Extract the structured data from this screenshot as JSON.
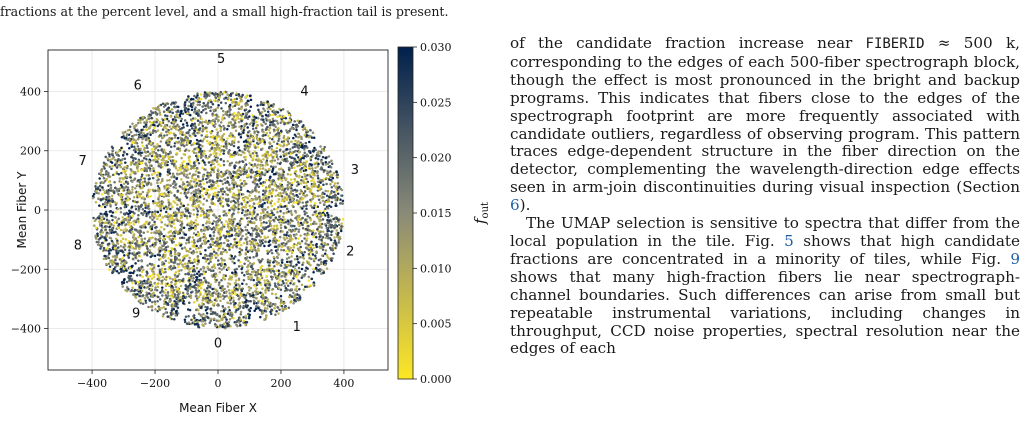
{
  "header": {
    "line1": "",
    "line2": "fractions at the percent level, and a small high-fraction tail is present."
  },
  "chart_data": {
    "type": "scatter",
    "xlabel": "Mean Fiber X",
    "ylabel": "Mean Fiber Y",
    "xlim": [
      -540,
      540
    ],
    "ylim": [
      -540,
      540
    ],
    "xticks": [
      "−400",
      "−200",
      "0",
      "200",
      "400"
    ],
    "yticks": [
      "−400",
      "−200",
      "0",
      "200",
      "400"
    ],
    "xtick_values": [
      -400,
      -200,
      0,
      200,
      400
    ],
    "ytick_values": [
      -400,
      -200,
      0,
      200,
      400
    ],
    "grid": true,
    "colorbar": {
      "label": "f",
      "label_sub": "out",
      "range": [
        0,
        0.03
      ],
      "ticks": [
        "0.000",
        "0.005",
        "0.010",
        "0.015",
        "0.020",
        "0.025",
        "0.030"
      ],
      "tick_values": [
        0,
        0.005,
        0.01,
        0.015,
        0.02,
        0.025,
        0.03
      ],
      "colors": [
        "#fde725",
        "#8a8a78",
        "#00204c"
      ]
    },
    "sector_labels": [
      {
        "text": "0",
        "x": 0,
        "y": -450
      },
      {
        "text": "1",
        "x": 250,
        "y": -395
      },
      {
        "text": "2",
        "x": 420,
        "y": -140
      },
      {
        "text": "3",
        "x": 435,
        "y": 135
      },
      {
        "text": "4",
        "x": 275,
        "y": 400
      },
      {
        "text": "5",
        "x": 10,
        "y": 510
      },
      {
        "text": "6",
        "x": -255,
        "y": 420
      },
      {
        "text": "7",
        "x": -430,
        "y": 165
      },
      {
        "text": "8",
        "x": -445,
        "y": -120
      },
      {
        "text": "9",
        "x": -260,
        "y": -350
      }
    ],
    "points_description": "dense fiber positions filling a disk of radius ~400 arranged in 10 petal-shaped spectrograph sectors, colored by outlier fraction f_out from 0 to 0.03"
  },
  "body": {
    "p1_a": "of the candidate fraction increase near ",
    "p1_mono": "FIBERID",
    "p1_b": " ≈ 500 k, corresponding to the edges of each 500-fiber spectrograph block, though the effect is most pronounced in the bright and backup programs. This indicates that fibers close to the edges of the spectrograph footprint are more frequently associated with candidate outliers, regardless of observing program. This pattern traces edge-dependent structure in the fiber direction on the detector, complementing the wavelength-direction edge effects seen in arm-join discontinuities during visual inspection (Section ",
    "p1_ref": "6",
    "p1_c": ").",
    "p2_a": "The UMAP selection is sensitive to spectra that differ from the local population in the tile. Fig. ",
    "p2_ref1": "5",
    "p2_b": " shows that high candidate fractions are concentrated in a minority of tiles, while Fig. ",
    "p2_ref2": "9",
    "p2_c": " shows that many high-fraction fibers lie near spectrograph-channel boundaries. Such differences can arise from small but repeatable instrumental variations, including changes in throughput, CCD noise properties, spectral resolution near the edges of each"
  }
}
